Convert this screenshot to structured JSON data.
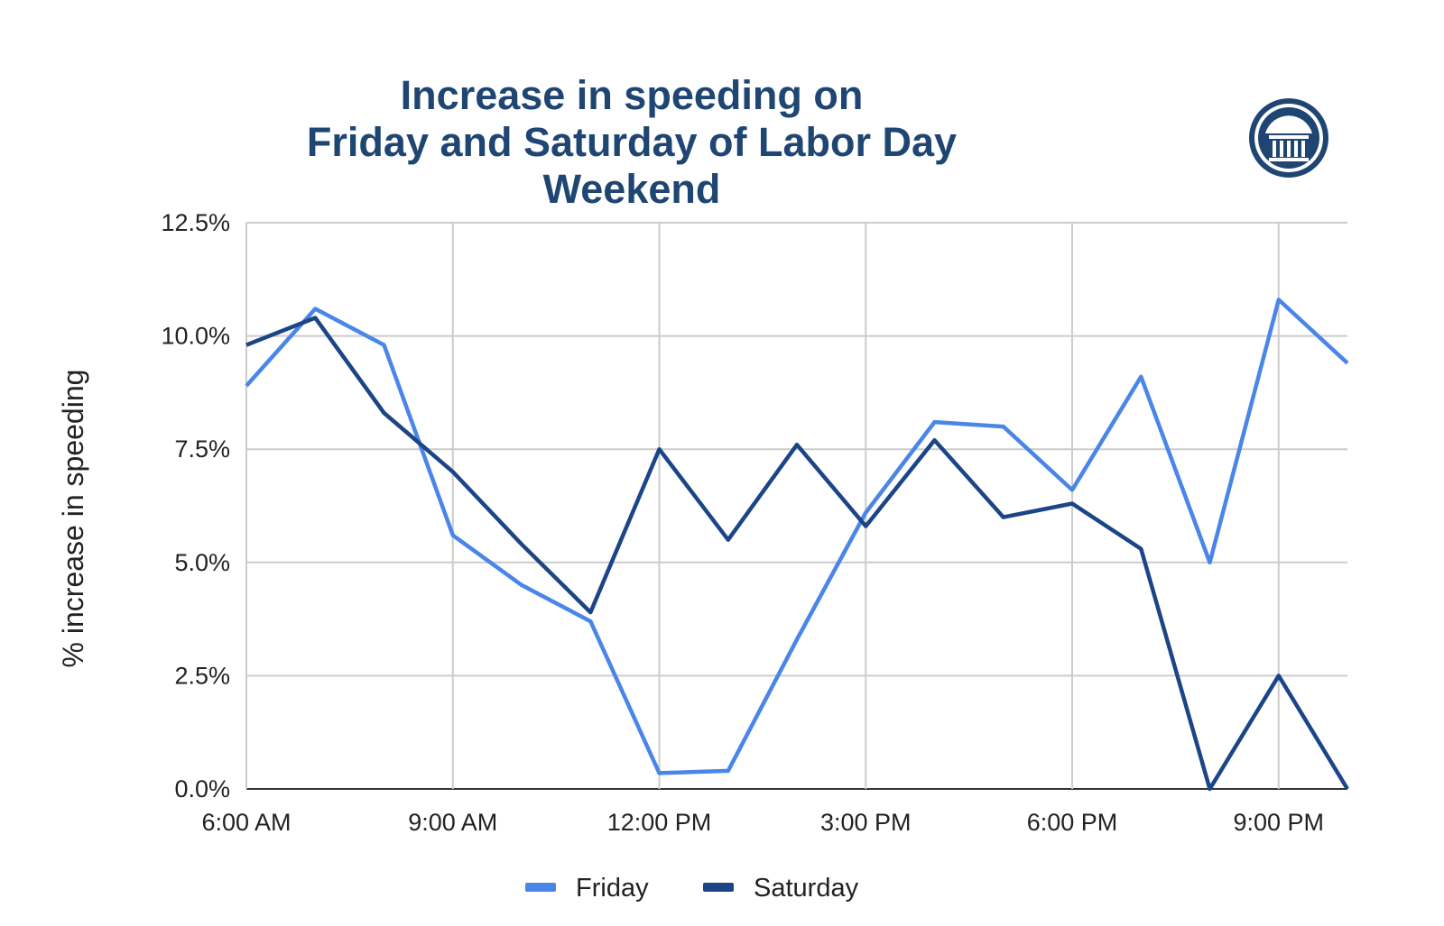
{
  "chart_data": {
    "type": "line",
    "title_lines": [
      "Increase in speeding on",
      "Friday and Saturday of Labor Day Weekend"
    ],
    "xlabel": "",
    "ylabel": "% increase in speeding",
    "x": [
      "6:00 AM",
      "7:00 AM",
      "8:00 AM",
      "9:00 AM",
      "10:00 AM",
      "11:00 AM",
      "12:00 PM",
      "1:00 PM",
      "2:00 PM",
      "3:00 PM",
      "4:00 PM",
      "5:00 PM",
      "6:00 PM",
      "7:00 PM",
      "8:00 PM",
      "9:00 PM",
      "10:00 PM"
    ],
    "x_tick_labels": [
      "6:00 AM",
      "9:00 AM",
      "12:00 PM",
      "3:00 PM",
      "6:00 PM",
      "9:00 PM"
    ],
    "y_tick_labels": [
      "0.0%",
      "2.5%",
      "5.0%",
      "7.5%",
      "10.0%",
      "12.5%"
    ],
    "ylim": [
      0,
      12.5
    ],
    "grid": true,
    "legend_position": "bottom",
    "series": [
      {
        "name": "Friday",
        "color": "#4a86e8",
        "values": [
          8.9,
          10.6,
          9.8,
          5.6,
          4.5,
          3.7,
          0.35,
          0.4,
          3.3,
          6.1,
          8.1,
          8.0,
          6.6,
          9.1,
          5.0,
          10.8,
          9.4
        ]
      },
      {
        "name": "Saturday",
        "color": "#1c4587",
        "values": [
          9.8,
          10.4,
          8.3,
          7.0,
          5.4,
          3.9,
          7.5,
          5.5,
          7.6,
          5.8,
          7.7,
          6.0,
          6.3,
          5.3,
          0.0,
          2.5,
          0.0
        ]
      }
    ]
  },
  "logo": {
    "name": "building-columns-logo",
    "color": "#1f4673"
  }
}
